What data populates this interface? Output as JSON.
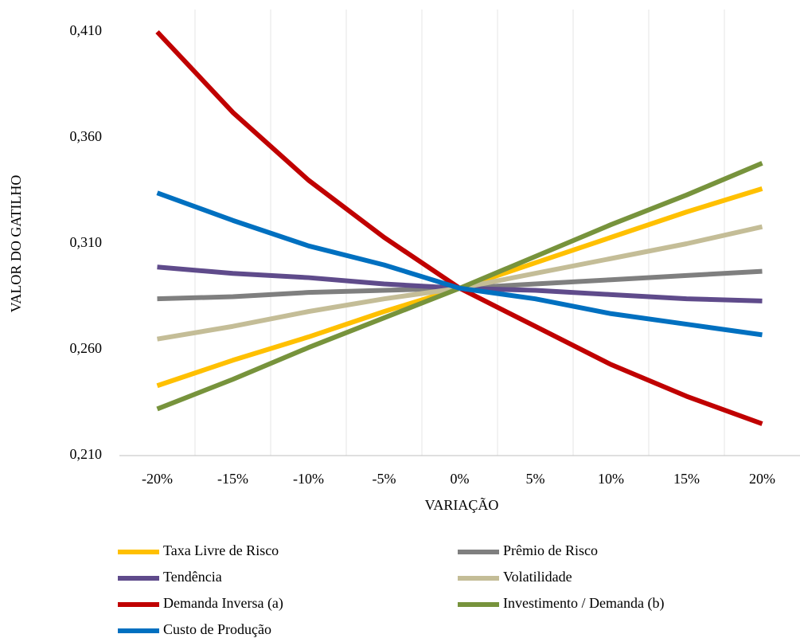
{
  "chart_data": {
    "type": "line",
    "x_label": "VARIAÇÃO",
    "y_label": "VALOR DO GATILHO",
    "categories": [
      "-20%",
      "-15%",
      "-10%",
      "-5%",
      "0%",
      "5%",
      "10%",
      "15%",
      "20%"
    ],
    "ylim": [
      0.21,
      0.41
    ],
    "yticks": [
      {
        "value": 0.21,
        "label": "0,210"
      },
      {
        "value": 0.26,
        "label": "0,260"
      },
      {
        "value": 0.31,
        "label": "0,310"
      },
      {
        "value": 0.36,
        "label": "0,360"
      },
      {
        "value": 0.41,
        "label": "0,410"
      }
    ],
    "grid": true,
    "series": [
      {
        "name": "Taxa Livre de Risco",
        "color": "#ffc000",
        "values": [
          0.243,
          0.255,
          0.266,
          0.278,
          0.289,
          0.301,
          0.313,
          0.325,
          0.336
        ]
      },
      {
        "name": "Prêmio de Risco",
        "color": "#7f7f7f",
        "values": [
          0.284,
          0.285,
          0.287,
          0.288,
          0.289,
          0.291,
          0.293,
          0.295,
          0.297
        ]
      },
      {
        "name": "Tendência",
        "color": "#5f4b8b",
        "values": [
          0.299,
          0.296,
          0.294,
          0.291,
          0.289,
          0.288,
          0.286,
          0.284,
          0.283
        ]
      },
      {
        "name": "Volatilidade",
        "color": "#c4bd97",
        "values": [
          0.265,
          0.271,
          0.278,
          0.284,
          0.289,
          0.296,
          0.303,
          0.31,
          0.318
        ]
      },
      {
        "name": "Demanda Inversa (a)",
        "color": "#c00000",
        "values": [
          0.41,
          0.372,
          0.34,
          0.313,
          0.289,
          0.271,
          0.253,
          0.238,
          0.225
        ]
      },
      {
        "name": "Investimento / Demanda (b)",
        "color": "#77933c",
        "values": [
          0.232,
          0.246,
          0.261,
          0.275,
          0.289,
          0.304,
          0.319,
          0.333,
          0.348
        ]
      },
      {
        "name": "Custo de Produção",
        "color": "#0070c0",
        "values": [
          0.334,
          0.321,
          0.309,
          0.3,
          0.289,
          0.284,
          0.277,
          0.272,
          0.267
        ]
      }
    ]
  }
}
